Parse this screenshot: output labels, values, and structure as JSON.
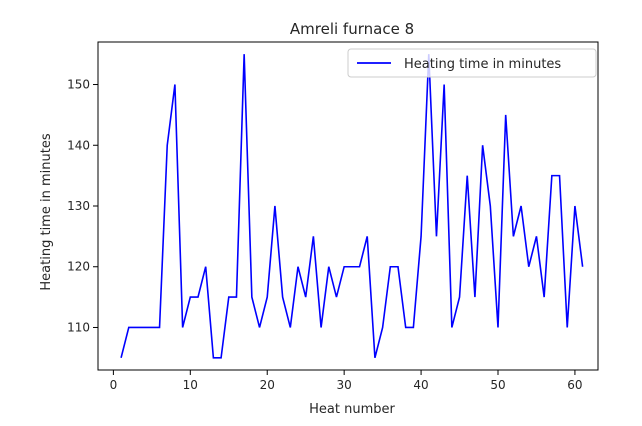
{
  "chart_data": {
    "type": "line",
    "title": "Amreli furnace 8",
    "xlabel": "Heat number",
    "ylabel": "Heating time in minutes",
    "xlim": [
      -2,
      63
    ],
    "ylim": [
      103,
      157
    ],
    "xticks": [
      0,
      10,
      20,
      30,
      40,
      50,
      60
    ],
    "yticks": [
      110,
      120,
      130,
      140,
      150
    ],
    "grid": false,
    "legend_position": "top-right",
    "colors": {
      "line": "#0000ff",
      "axis": "#000000",
      "legend_border": "#cccccc"
    },
    "x": [
      1,
      2,
      3,
      4,
      5,
      6,
      7,
      8,
      9,
      10,
      11,
      12,
      13,
      14,
      15,
      16,
      17,
      18,
      19,
      20,
      21,
      22,
      23,
      24,
      25,
      26,
      27,
      28,
      29,
      30,
      31,
      32,
      33,
      34,
      35,
      36,
      37,
      38,
      39,
      40,
      41,
      42,
      43,
      44,
      45,
      46,
      47,
      48,
      49,
      50,
      51,
      52,
      53,
      54,
      55,
      56,
      57,
      58,
      59,
      60,
      61
    ],
    "series": [
      {
        "name": "Heating time in minutes",
        "values": [
          105,
          110,
          110,
          110,
          110,
          110,
          140,
          150,
          110,
          115,
          115,
          120,
          105,
          105,
          115,
          115,
          155,
          115,
          110,
          115,
          130,
          115,
          110,
          120,
          115,
          125,
          110,
          120,
          115,
          120,
          120,
          120,
          125,
          105,
          110,
          120,
          120,
          110,
          110,
          125,
          155,
          125,
          150,
          110,
          115,
          135,
          115,
          140,
          130,
          110,
          145,
          125,
          130,
          120,
          125,
          115,
          135,
          135,
          110,
          130,
          120
        ]
      }
    ]
  }
}
